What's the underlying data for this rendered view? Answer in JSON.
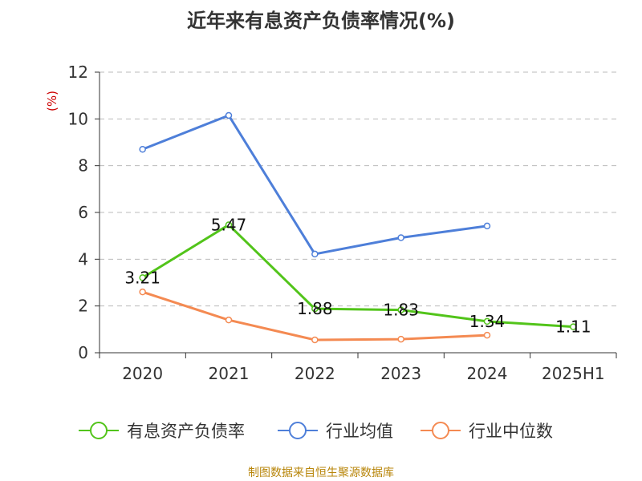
{
  "chart_data": {
    "type": "line",
    "title": "近年来有息资产负债率情况(%)",
    "ylabel": "(%)",
    "xlabel": "",
    "categories": [
      "2020",
      "2021",
      "2022",
      "2023",
      "2024",
      "2025H1"
    ],
    "yticks": [
      "0",
      "2",
      "4",
      "6",
      "8",
      "10",
      "12"
    ],
    "ylim": [
      0,
      12
    ],
    "grid": true,
    "legend_position": "bottom",
    "series": [
      {
        "name": "有息资产负债率",
        "color": "#52c41a",
        "values": [
          3.21,
          5.47,
          1.88,
          1.83,
          1.34,
          1.11
        ],
        "data_labels": [
          "3.21",
          "5.47",
          "1.88",
          "1.83",
          "1.34",
          "1.11"
        ]
      },
      {
        "name": "行业均值",
        "color": "#4e7fd9",
        "values": [
          8.7,
          10.15,
          4.22,
          4.92,
          5.42,
          null
        ]
      },
      {
        "name": "行业中位数",
        "color": "#f48a52",
        "values": [
          2.6,
          1.4,
          0.55,
          0.58,
          0.75,
          null
        ]
      }
    ]
  },
  "source": "制图数据来自恒生聚源数据库"
}
